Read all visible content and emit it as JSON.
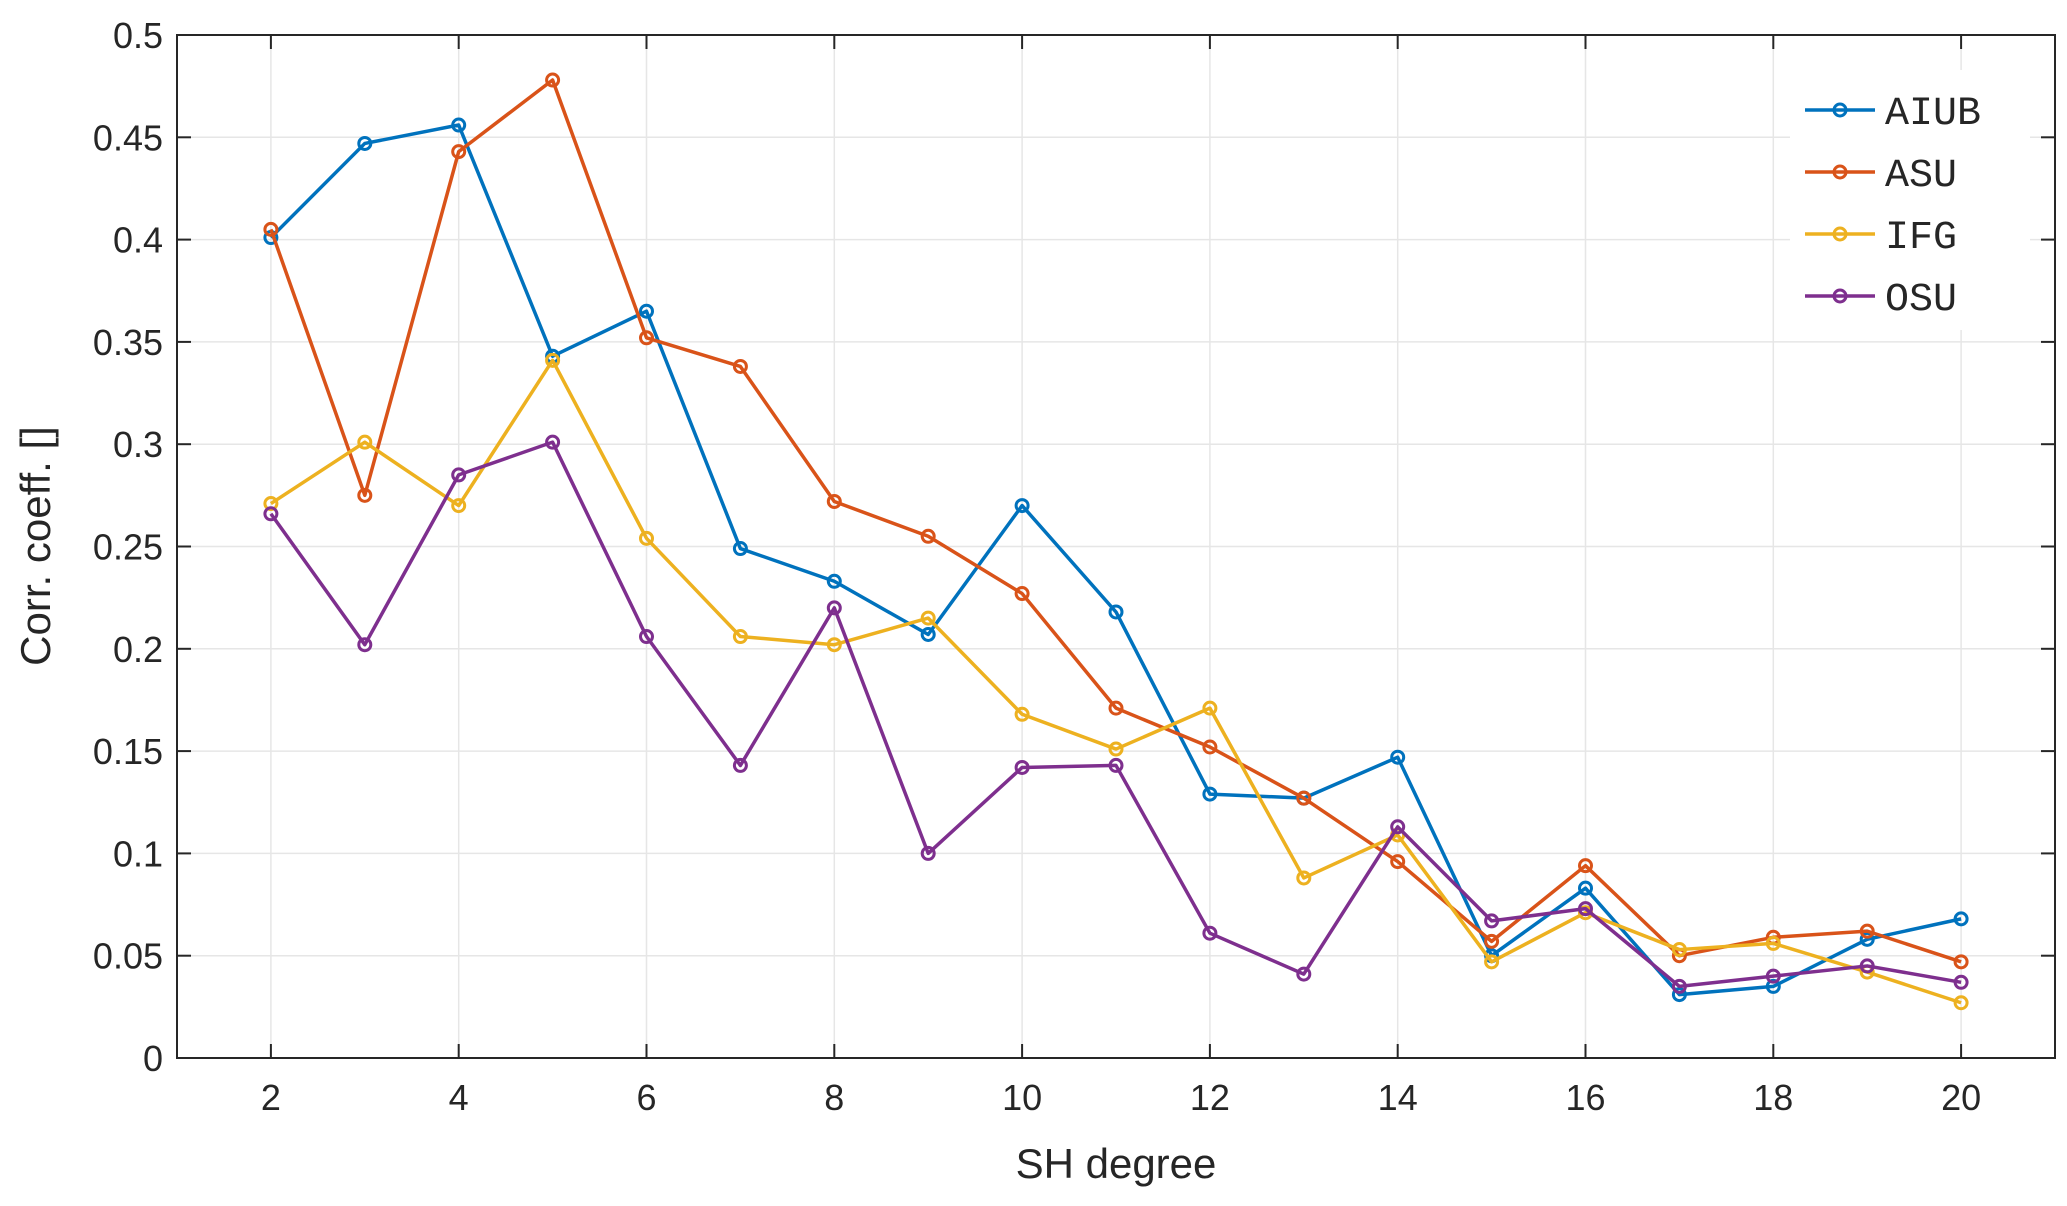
{
  "chart_data": {
    "type": "line",
    "xlabel": "SH degree",
    "ylabel": "Corr. coeff. []",
    "xlim": [
      1,
      21
    ],
    "ylim": [
      0,
      0.5
    ],
    "xticks": [
      2,
      4,
      6,
      8,
      10,
      12,
      14,
      16,
      18,
      20
    ],
    "yticks": [
      0,
      0.05,
      0.1,
      0.15,
      0.2,
      0.25,
      0.3,
      0.35,
      0.4,
      0.45,
      0.5
    ],
    "grid": true,
    "legend_position": "top-right",
    "x": [
      2,
      3,
      4,
      5,
      6,
      7,
      8,
      9,
      10,
      11,
      12,
      13,
      14,
      15,
      16,
      17,
      18,
      19,
      20
    ],
    "series": [
      {
        "name": "AIUB",
        "color": "#0072BD",
        "values": [
          0.401,
          0.447,
          0.456,
          0.343,
          0.365,
          0.249,
          0.233,
          0.207,
          0.27,
          0.218,
          0.129,
          0.127,
          0.147,
          0.05,
          0.083,
          0.031,
          0.035,
          0.058,
          0.068
        ]
      },
      {
        "name": "ASU",
        "color": "#D95319",
        "values": [
          0.405,
          0.275,
          0.443,
          0.478,
          0.352,
          0.338,
          0.272,
          0.255,
          0.227,
          0.171,
          0.152,
          0.127,
          0.096,
          0.057,
          0.094,
          0.05,
          0.059,
          0.062,
          0.047
        ]
      },
      {
        "name": "IFG",
        "color": "#EDB120",
        "values": [
          0.271,
          0.301,
          0.27,
          0.341,
          0.254,
          0.206,
          0.202,
          0.215,
          0.168,
          0.151,
          0.171,
          0.088,
          0.109,
          0.047,
          0.071,
          0.053,
          0.056,
          0.042,
          0.027
        ]
      },
      {
        "name": "OSU",
        "color": "#7E2F8E",
        "values": [
          0.266,
          0.202,
          0.285,
          0.301,
          0.206,
          0.143,
          0.22,
          0.1,
          0.142,
          0.143,
          0.061,
          0.041,
          0.113,
          0.067,
          0.073,
          0.035,
          0.04,
          0.045,
          0.037
        ]
      }
    ]
  }
}
